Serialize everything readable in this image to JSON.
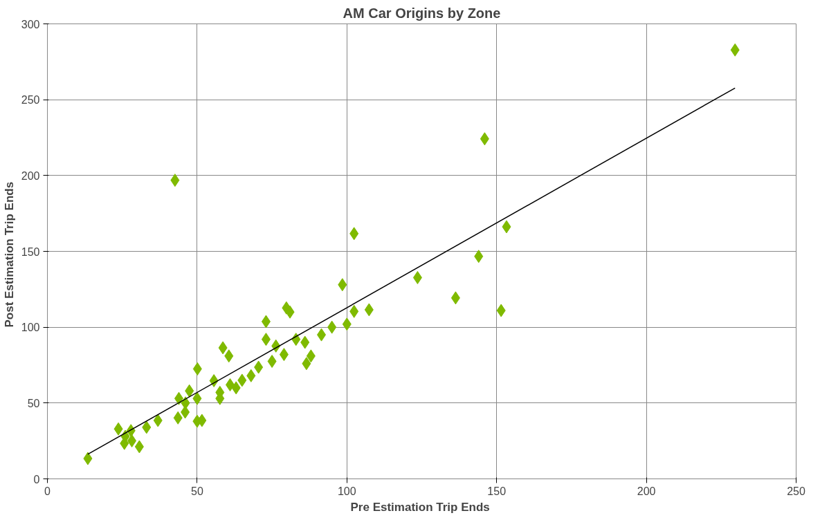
{
  "chart_data": {
    "type": "scatter",
    "title": "AM Car Origins by Zone",
    "xlabel": "Pre Estimation  Trip Ends",
    "ylabel": "Post  Estimation  Trip Ends",
    "xlim": [
      0,
      250
    ],
    "ylim": [
      0,
      300
    ],
    "xticks": [
      0,
      50,
      100,
      150,
      200,
      250
    ],
    "yticks": [
      0,
      50,
      100,
      150,
      200,
      250,
      300
    ],
    "grid": true,
    "marker": "diamond",
    "series": [
      {
        "color": "#7fba00",
        "x": [
          13.5,
          23.7,
          25.7,
          27.9,
          28.2,
          30.7,
          26,
          33.1,
          36.9,
          43.6,
          43.9,
          42.6,
          46.1,
          46,
          50.1,
          50,
          51.6,
          50,
          47.4,
          55.6,
          57.6,
          57.6,
          58.6,
          60.6,
          61,
          63,
          65,
          68,
          70.5,
          73,
          73,
          75,
          76.3,
          79.8,
          81,
          79,
          83,
          86,
          86.5,
          88,
          91.5,
          95,
          98.5,
          100,
          102.4,
          102.4,
          107.4,
          123.6,
          136.3,
          144,
          146,
          151.5,
          153.3,
          229.6
        ],
        "values": [
          13.4,
          32.9,
          23.4,
          31.8,
          25.1,
          21.2,
          28,
          34,
          38.5,
          40.2,
          53,
          196.9,
          50,
          44,
          72.5,
          38,
          38.5,
          53,
          58,
          64.7,
          57,
          53,
          86.4,
          81,
          62,
          60,
          65,
          68,
          73.6,
          92,
          103.7,
          77.5,
          87.6,
          112.7,
          110,
          82,
          92,
          90,
          76,
          81,
          95,
          100,
          128,
          102,
          161.7,
          110.4,
          111.5,
          132.7,
          119.3,
          146.7,
          224.2,
          111,
          166.2,
          282.8
        ]
      },
      {
        "type": "line",
        "color": "#000000",
        "marker": "none",
        "line_style": "solid",
        "x": [
          13.5,
          229.6
        ],
        "values": [
          16.2,
          257.7
        ]
      }
    ]
  }
}
